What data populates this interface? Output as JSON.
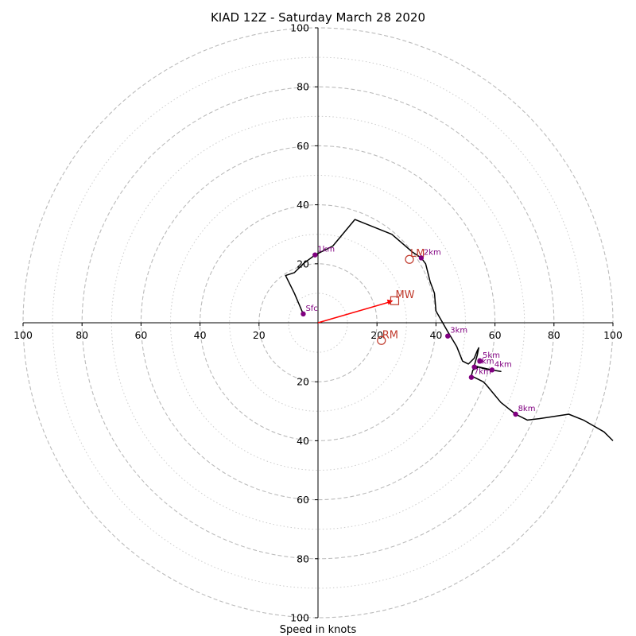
{
  "chart_data": {
    "type": "hodograph",
    "title": "KIAD 12Z - Saturday March 28 2020",
    "xlabel": "Speed in knots",
    "ylabel": "",
    "range": [
      -100,
      100
    ],
    "rings_major": [
      20,
      40,
      60,
      80,
      100
    ],
    "rings_minor": [
      10,
      30,
      50,
      70,
      90
    ],
    "ticks": {
      "x": [
        {
          "v": -100,
          "label": "100"
        },
        {
          "v": -80,
          "label": "80"
        },
        {
          "v": -60,
          "label": "60"
        },
        {
          "v": -40,
          "label": "40"
        },
        {
          "v": -20,
          "label": "20"
        },
        {
          "v": 20,
          "label": "20"
        },
        {
          "v": 40,
          "label": "40"
        },
        {
          "v": 60,
          "label": "60"
        },
        {
          "v": 80,
          "label": "80"
        },
        {
          "v": 100,
          "label": "100"
        }
      ],
      "y": [
        {
          "v": 100,
          "label": "100"
        },
        {
          "v": 80,
          "label": "80"
        },
        {
          "v": 60,
          "label": "60"
        },
        {
          "v": 40,
          "label": "40"
        },
        {
          "v": 20,
          "label": "20"
        },
        {
          "v": -20,
          "label": "20"
        },
        {
          "v": -40,
          "label": "40"
        },
        {
          "v": -60,
          "label": "60"
        },
        {
          "v": -80,
          "label": "80"
        },
        {
          "v": -100,
          "label": "100"
        }
      ]
    },
    "trace": [
      [
        -5,
        3
      ],
      [
        -8,
        10
      ],
      [
        -11,
        16
      ],
      [
        -8,
        17
      ],
      [
        -5,
        20
      ],
      [
        -1,
        23
      ],
      [
        5,
        26
      ],
      [
        12.5,
        35
      ],
      [
        25,
        30
      ],
      [
        32,
        24
      ],
      [
        35,
        22
      ],
      [
        36.5,
        20
      ],
      [
        38,
        14
      ],
      [
        39.5,
        10
      ],
      [
        40,
        4
      ],
      [
        44,
        -3
      ],
      [
        47,
        -8
      ],
      [
        49,
        -13
      ],
      [
        51,
        -14
      ],
      [
        53,
        -12
      ],
      [
        54,
        -9.5
      ],
      [
        54.5,
        -8.5
      ],
      [
        54,
        -11
      ],
      [
        53,
        -14.5
      ],
      [
        56,
        -15.5
      ],
      [
        59,
        -16
      ],
      [
        62,
        -16.5
      ],
      [
        59,
        -16
      ],
      [
        54.5,
        -15
      ],
      [
        52.5,
        -16
      ],
      [
        52,
        -18
      ],
      [
        56,
        -20
      ],
      [
        57,
        -21
      ],
      [
        62,
        -27
      ],
      [
        67,
        -31
      ],
      [
        71,
        -33
      ],
      [
        75,
        -32.5
      ],
      [
        85,
        -31
      ],
      [
        90,
        -33
      ],
      [
        97,
        -37
      ],
      [
        100,
        -40
      ]
    ],
    "height_markers": [
      {
        "label": "Sfc",
        "u": -5,
        "v": 3
      },
      {
        "label": "1km",
        "u": -1,
        "v": 23
      },
      {
        "label": "2km",
        "u": 35,
        "v": 22
      },
      {
        "label": "3km",
        "u": 44,
        "v": -4.5
      },
      {
        "label": "4km",
        "u": 59,
        "v": -16
      },
      {
        "label": "5km",
        "u": 55,
        "v": -13
      },
      {
        "label": "6km",
        "u": 53,
        "v": -15
      },
      {
        "label": "7km",
        "u": 52,
        "v": -18.5
      },
      {
        "label": "8km",
        "u": 67,
        "v": -31
      }
    ],
    "storm_motion": {
      "mean_wind": {
        "label": "MW",
        "u": 26,
        "v": 7.5
      },
      "left_mover": {
        "label": "LM",
        "u": 31,
        "v": 21.5
      },
      "right_mover": {
        "label": "RM",
        "u": 21.5,
        "v": -6
      }
    },
    "colors": {
      "trace": "#000000",
      "markers": "#800080",
      "storm_motion": "#c0392b",
      "rings": "#bbbbbb"
    }
  }
}
